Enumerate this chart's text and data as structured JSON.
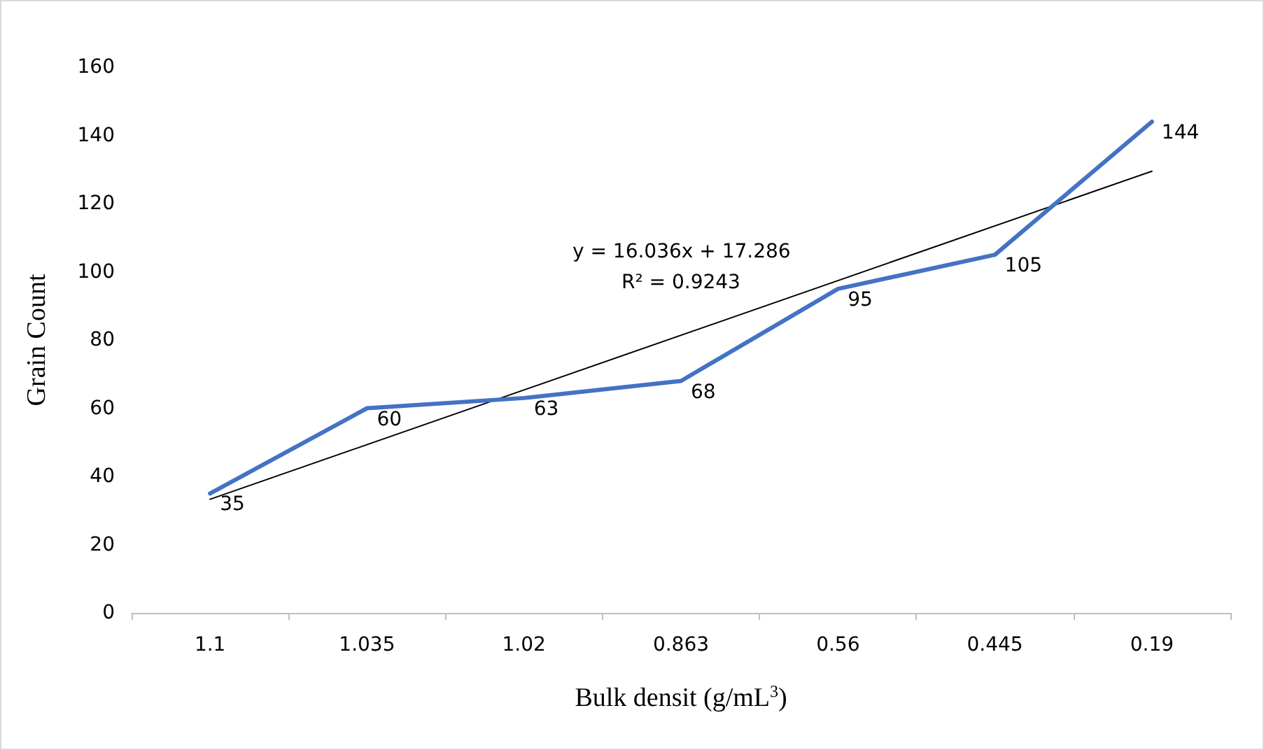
{
  "chart_data": {
    "type": "line",
    "xlabel": "Bulk densit (g/mL$^{3}$)",
    "ylabel": "Grain Count",
    "categories": [
      "1.1",
      "1.035",
      "1.02",
      "0.863",
      "0.56",
      "0.445",
      "0.19"
    ],
    "series": [
      {
        "color": "#4472c4",
        "values": [
          35,
          60,
          63,
          68,
          95,
          105,
          144
        ],
        "value_labels": [
          "35",
          "60",
          "63",
          "68",
          "95",
          "105",
          "144"
        ]
      },
      {
        "type": "line",
        "color": "#000000",
        "x": [
          "1.1",
          "0.19"
        ],
        "values": [
          33.3,
          129.5
        ]
      }
    ],
    "ylim": [
      0,
      160
    ],
    "yticks": [
      0,
      20,
      40,
      60,
      80,
      100,
      120,
      140,
      160
    ],
    "grid": false,
    "marker": "none",
    "line_style": "solid",
    "annotations": [
      "y = 16.036x + 17.286",
      "R² = 0.9243"
    ]
  }
}
